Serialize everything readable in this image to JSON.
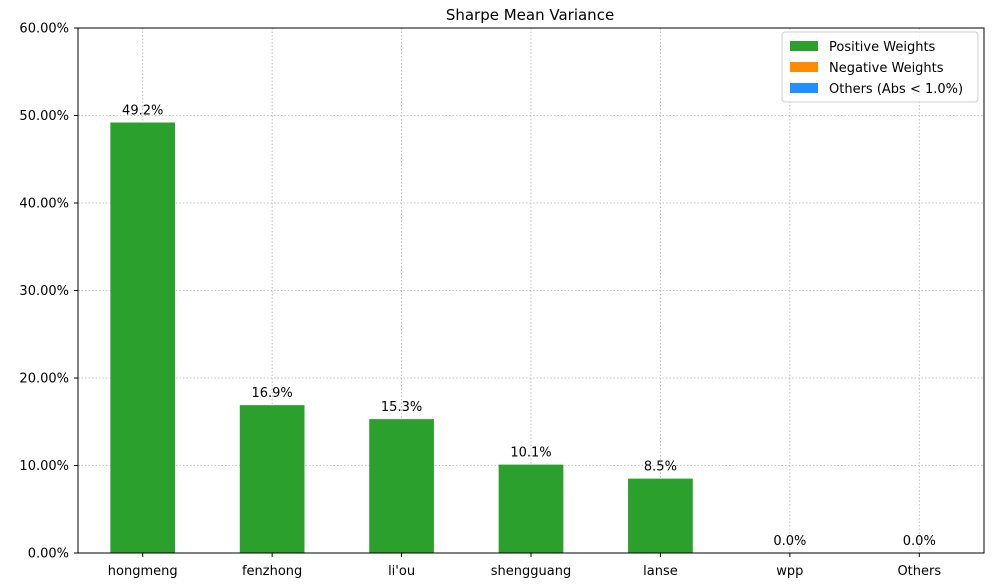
{
  "chart_data": {
    "type": "bar",
    "title": "Sharpe Mean Variance",
    "xlabel": "",
    "ylabel": "",
    "categories": [
      "hongmeng",
      "fenzhong",
      "li'ou",
      "shengguang",
      "lanse",
      "wpp",
      "Others"
    ],
    "values": [
      0.492,
      0.169,
      0.153,
      0.101,
      0.085,
      0.0,
      0.0
    ],
    "data_labels": [
      "49.2%",
      "16.9%",
      "15.3%",
      "10.1%",
      "8.5%",
      "0.0%",
      "0.0%"
    ],
    "ylim": [
      0,
      0.6
    ],
    "yticks": [
      0,
      0.1,
      0.2,
      0.3,
      0.4,
      0.5,
      0.6
    ],
    "ytick_labels": [
      "0.00%",
      "10.00%",
      "20.00%",
      "30.00%",
      "40.00%",
      "50.00%",
      "60.00%"
    ],
    "grid": true,
    "bar_color": "#2ca02c",
    "legend": {
      "placement": "top-right",
      "entries": [
        {
          "label": "Positive Weights",
          "color": "#2ca02c"
        },
        {
          "label": "Negative Weights",
          "color": "#ff8c00"
        },
        {
          "label": "Others (Abs < 1.0%)",
          "color": "#1e90ff"
        }
      ]
    }
  }
}
